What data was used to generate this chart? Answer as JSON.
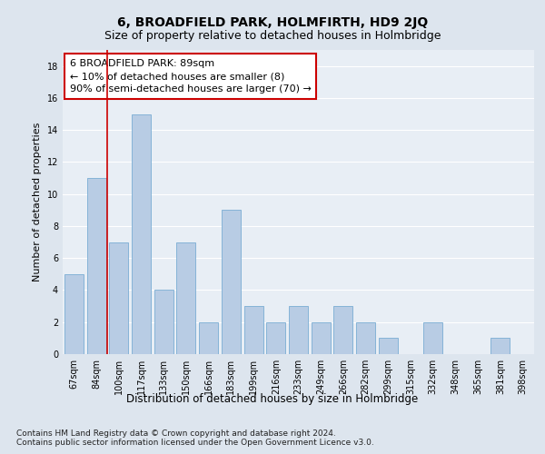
{
  "title": "6, BROADFIELD PARK, HOLMFIRTH, HD9 2JQ",
  "subtitle": "Size of property relative to detached houses in Holmbridge",
  "xlabel": "Distribution of detached houses by size in Holmbridge",
  "ylabel": "Number of detached properties",
  "categories": [
    "67sqm",
    "84sqm",
    "100sqm",
    "117sqm",
    "133sqm",
    "150sqm",
    "166sqm",
    "183sqm",
    "199sqm",
    "216sqm",
    "233sqm",
    "249sqm",
    "266sqm",
    "282sqm",
    "299sqm",
    "315sqm",
    "332sqm",
    "348sqm",
    "365sqm",
    "381sqm",
    "398sqm"
  ],
  "values": [
    5,
    11,
    7,
    15,
    4,
    7,
    2,
    9,
    3,
    2,
    3,
    2,
    3,
    2,
    1,
    0,
    2,
    0,
    0,
    1,
    0
  ],
  "bar_color": "#b8cce4",
  "bar_edge_color": "#7aadd4",
  "red_line_color": "#cc0000",
  "red_line_x": 1.5,
  "annotation_text": "6 BROADFIELD PARK: 89sqm\n← 10% of detached houses are smaller (8)\n90% of semi-detached houses are larger (70) →",
  "annotation_box_color": "white",
  "annotation_box_edge_color": "#cc0000",
  "ylim": [
    0,
    19
  ],
  "yticks": [
    0,
    2,
    4,
    6,
    8,
    10,
    12,
    14,
    16,
    18
  ],
  "footer_line1": "Contains HM Land Registry data © Crown copyright and database right 2024.",
  "footer_line2": "Contains public sector information licensed under the Open Government Licence v3.0.",
  "background_color": "#dde5ee",
  "plot_bg_color": "#e8eef5",
  "grid_color": "white",
  "title_fontsize": 10,
  "subtitle_fontsize": 9,
  "xlabel_fontsize": 8.5,
  "ylabel_fontsize": 8,
  "tick_fontsize": 7,
  "annotation_fontsize": 8,
  "footer_fontsize": 6.5
}
